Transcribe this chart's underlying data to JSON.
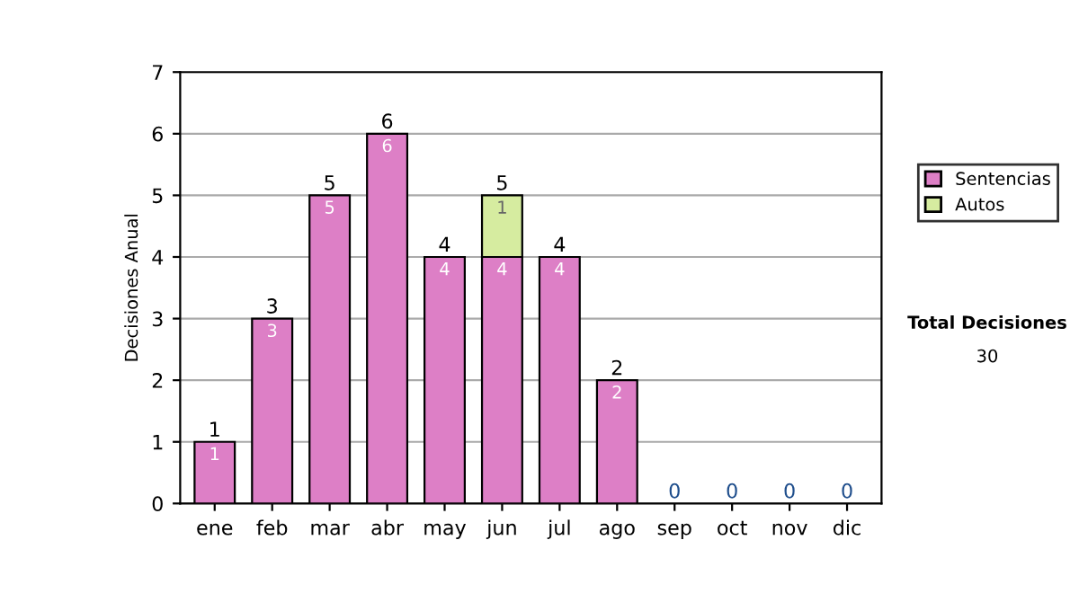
{
  "chart_data": {
    "type": "bar",
    "ylabel": "Decisiones Anual",
    "categories": [
      "ene",
      "feb",
      "mar",
      "abr",
      "may",
      "jun",
      "jul",
      "ago",
      "sep",
      "oct",
      "nov",
      "dic"
    ],
    "stacked": true,
    "series": [
      {
        "name": "Sentencias",
        "color": "#dd7fc6",
        "values": [
          1,
          3,
          5,
          6,
          4,
          4,
          4,
          2,
          0,
          0,
          0,
          0
        ],
        "value_labels": [
          "1",
          "3",
          "5",
          "6",
          "4",
          "4",
          "4",
          "2",
          null,
          null,
          null,
          null
        ]
      },
      {
        "name": "Autos",
        "color": "#d6eca0",
        "values": [
          0,
          0,
          0,
          0,
          0,
          1,
          0,
          0,
          0,
          0,
          0,
          0
        ],
        "value_labels": [
          null,
          null,
          null,
          null,
          null,
          "1",
          null,
          null,
          null,
          null,
          null,
          null
        ]
      }
    ],
    "totals": [
      "1",
      "3",
      "5",
      "6",
      "4",
      "5",
      "4",
      "2",
      "0",
      "0",
      "0",
      "0"
    ],
    "ylim": [
      0,
      7
    ],
    "yticks": [
      0,
      1,
      2,
      3,
      4,
      5,
      6,
      7
    ],
    "grid": "y",
    "legend": "right",
    "annotations": [
      "Total Decisiones",
      "30"
    ]
  }
}
